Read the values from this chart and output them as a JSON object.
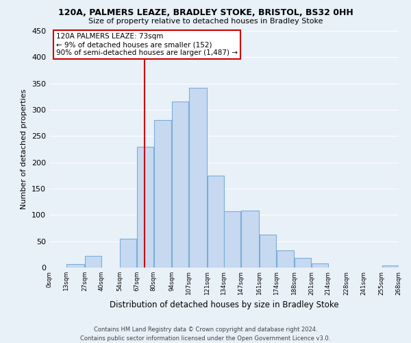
{
  "title1": "120A, PALMERS LEAZE, BRADLEY STOKE, BRISTOL, BS32 0HH",
  "title2": "Size of property relative to detached houses in Bradley Stoke",
  "xlabel": "Distribution of detached houses by size in Bradley Stoke",
  "ylabel": "Number of detached properties",
  "bar_left_edges": [
    0,
    13,
    27,
    40,
    54,
    67,
    80,
    94,
    107,
    121,
    134,
    147,
    161,
    174,
    188,
    201,
    214,
    228,
    241,
    255
  ],
  "bar_widths": [
    13,
    14,
    13,
    14,
    13,
    13,
    14,
    13,
    14,
    13,
    13,
    14,
    13,
    14,
    13,
    13,
    14,
    13,
    14,
    13
  ],
  "bar_heights": [
    0,
    6,
    22,
    0,
    55,
    230,
    280,
    315,
    342,
    175,
    107,
    108,
    63,
    33,
    18,
    8,
    0,
    0,
    0,
    4
  ],
  "bar_color": "#c6d9f1",
  "bar_edge_color": "#7badd6",
  "tick_labels": [
    "0sqm",
    "13sqm",
    "27sqm",
    "40sqm",
    "54sqm",
    "67sqm",
    "80sqm",
    "94sqm",
    "107sqm",
    "121sqm",
    "134sqm",
    "147sqm",
    "161sqm",
    "174sqm",
    "188sqm",
    "201sqm",
    "214sqm",
    "228sqm",
    "241sqm",
    "255sqm",
    "268sqm"
  ],
  "ylim": [
    0,
    450
  ],
  "yticks": [
    0,
    50,
    100,
    150,
    200,
    250,
    300,
    350,
    400,
    450
  ],
  "vline_x": 73,
  "vline_color": "#cc0000",
  "annotation_title": "120A PALMERS LEAZE: 73sqm",
  "annotation_line2": "← 9% of detached houses are smaller (152)",
  "annotation_line3": "90% of semi-detached houses are larger (1,487) →",
  "footer1": "Contains HM Land Registry data © Crown copyright and database right 2024.",
  "footer2": "Contains public sector information licensed under the Open Government Licence v3.0.",
  "bg_color": "#e8f0f8",
  "grid_color": "#ffffff"
}
